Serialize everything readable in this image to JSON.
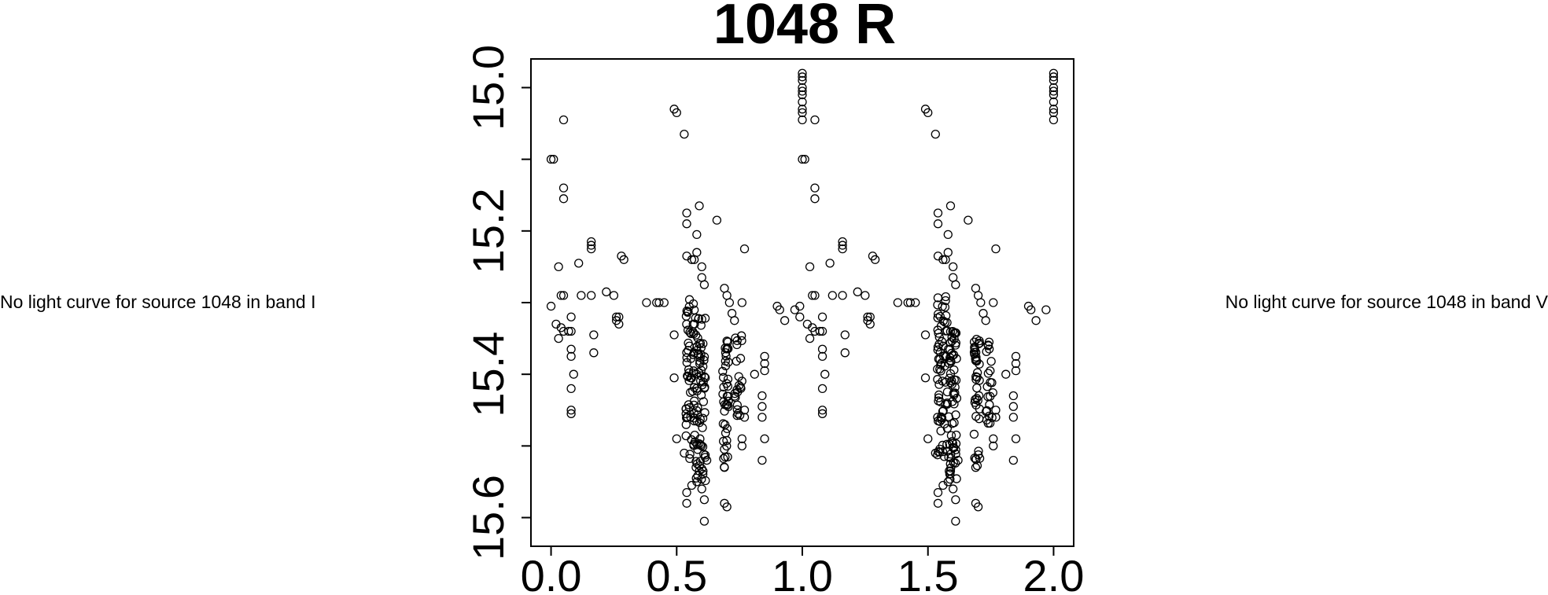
{
  "panels": {
    "left_message": "No light curve for source 1048 in band I",
    "right_message": "No light curve for source 1048 in band V"
  },
  "chart_data": {
    "type": "scatter",
    "title": "1048 R",
    "xlabel": "",
    "ylabel": "",
    "xlim": [
      -0.08,
      2.08
    ],
    "ylim": [
      15.64,
      14.96
    ],
    "y_inverted": true,
    "grid": false,
    "marker": "open-circle",
    "x_ticks": [
      "0.0",
      "0.5",
      "1.0",
      "1.5",
      "2.0"
    ],
    "y_ticks": [
      "15.0",
      "15.2",
      "15.4",
      "15.6"
    ],
    "x_tick_values": [
      0.0,
      0.5,
      1.0,
      1.5,
      2.0
    ],
    "y_tick_values": [
      15.0,
      15.1,
      15.2,
      15.3,
      15.4,
      15.5,
      15.6
    ],
    "y_tick_label_values": [
      15.0,
      15.2,
      15.4,
      15.6
    ],
    "phase_points": [
      [
        0.0,
        15.1
      ],
      [
        0.01,
        15.1
      ],
      [
        0.05,
        15.045
      ],
      [
        0.05,
        15.14
      ],
      [
        0.05,
        15.155
      ],
      [
        0.03,
        15.25
      ],
      [
        0.04,
        15.29
      ],
      [
        0.05,
        15.29
      ],
      [
        0.0,
        15.305
      ],
      [
        0.02,
        15.33
      ],
      [
        0.04,
        15.335
      ],
      [
        0.05,
        15.34
      ],
      [
        0.07,
        15.34
      ],
      [
        0.08,
        15.34
      ],
      [
        0.03,
        15.35
      ],
      [
        0.08,
        15.32
      ],
      [
        0.08,
        15.365
      ],
      [
        0.08,
        15.375
      ],
      [
        0.09,
        15.4
      ],
      [
        0.08,
        15.42
      ],
      [
        0.08,
        15.45
      ],
      [
        0.08,
        15.455
      ],
      [
        0.11,
        15.245
      ],
      [
        0.12,
        15.29
      ],
      [
        0.16,
        15.29
      ],
      [
        0.16,
        15.215
      ],
      [
        0.16,
        15.22
      ],
      [
        0.16,
        15.225
      ],
      [
        0.17,
        15.345
      ],
      [
        0.17,
        15.37
      ],
      [
        0.22,
        15.285
      ],
      [
        0.25,
        15.29
      ],
      [
        0.26,
        15.32
      ],
      [
        0.27,
        15.32
      ],
      [
        0.27,
        15.33
      ],
      [
        0.26,
        15.325
      ],
      [
        0.28,
        15.235
      ],
      [
        0.29,
        15.24
      ],
      [
        0.38,
        15.3
      ],
      [
        0.42,
        15.3
      ],
      [
        0.43,
        15.3
      ],
      [
        0.45,
        15.3
      ],
      [
        0.49,
        15.03
      ],
      [
        0.5,
        15.035
      ],
      [
        0.49,
        15.345
      ],
      [
        0.49,
        15.405
      ],
      [
        0.5,
        15.49
      ],
      [
        0.53,
        15.065
      ],
      [
        0.54,
        15.175
      ],
      [
        0.54,
        15.19
      ],
      [
        0.54,
        15.235
      ],
      [
        0.56,
        15.24
      ],
      [
        0.57,
        15.24
      ],
      [
        0.58,
        15.23
      ],
      [
        0.59,
        15.165
      ],
      [
        0.58,
        15.205
      ],
      [
        0.6,
        15.25
      ],
      [
        0.6,
        15.265
      ],
      [
        0.61,
        15.275
      ],
      [
        0.66,
        15.185
      ],
      [
        0.69,
        15.28
      ],
      [
        0.7,
        15.29
      ],
      [
        0.71,
        15.3
      ],
      [
        0.72,
        15.315
      ],
      [
        0.73,
        15.325
      ],
      [
        0.76,
        15.3
      ],
      [
        0.77,
        15.225
      ],
      [
        0.81,
        15.4
      ],
      [
        0.85,
        15.375
      ],
      [
        0.85,
        15.385
      ],
      [
        0.85,
        15.395
      ],
      [
        0.84,
        15.43
      ],
      [
        0.84,
        15.445
      ],
      [
        0.84,
        15.46
      ],
      [
        0.85,
        15.49
      ],
      [
        0.84,
        15.52
      ],
      [
        0.53,
        15.51
      ],
      [
        0.54,
        15.565
      ],
      [
        0.54,
        15.58
      ],
      [
        0.56,
        15.555
      ],
      [
        0.58,
        15.55
      ],
      [
        0.59,
        15.535
      ],
      [
        0.6,
        15.56
      ],
      [
        0.61,
        15.575
      ],
      [
        0.61,
        15.605
      ],
      [
        0.62,
        15.52
      ],
      [
        0.69,
        15.53
      ],
      [
        0.69,
        15.58
      ],
      [
        0.7,
        15.585
      ],
      [
        0.76,
        15.49
      ],
      [
        0.76,
        15.5
      ],
      [
        0.77,
        15.45
      ],
      [
        0.77,
        15.46
      ],
      [
        0.9,
        15.305
      ],
      [
        0.91,
        15.31
      ],
      [
        0.93,
        15.325
      ],
      [
        0.97,
        15.31
      ],
      [
        0.99,
        15.305
      ],
      [
        0.99,
        15.32
      ],
      [
        1.0,
        14.98
      ],
      [
        1.0,
        14.985
      ],
      [
        1.0,
        14.99
      ],
      [
        1.0,
        15.0
      ],
      [
        1.0,
        15.005
      ],
      [
        1.0,
        15.01
      ],
      [
        1.0,
        15.02
      ],
      [
        1.0,
        15.03
      ],
      [
        1.0,
        15.035
      ],
      [
        1.0,
        15.045
      ],
      [
        1.0,
        15.1
      ],
      [
        1.01,
        15.1
      ],
      [
        1.05,
        15.045
      ],
      [
        1.05,
        15.14
      ],
      [
        1.05,
        15.155
      ],
      [
        1.03,
        15.25
      ],
      [
        1.04,
        15.29
      ],
      [
        1.05,
        15.29
      ],
      [
        1.02,
        15.33
      ],
      [
        1.04,
        15.335
      ],
      [
        1.05,
        15.34
      ],
      [
        1.07,
        15.34
      ],
      [
        1.08,
        15.34
      ],
      [
        1.03,
        15.35
      ],
      [
        1.08,
        15.32
      ],
      [
        1.08,
        15.365
      ],
      [
        1.08,
        15.375
      ],
      [
        1.09,
        15.4
      ],
      [
        1.08,
        15.42
      ],
      [
        1.08,
        15.45
      ],
      [
        1.08,
        15.455
      ],
      [
        1.11,
        15.245
      ],
      [
        1.12,
        15.29
      ],
      [
        1.16,
        15.29
      ],
      [
        1.16,
        15.215
      ],
      [
        1.16,
        15.22
      ],
      [
        1.16,
        15.225
      ],
      [
        1.17,
        15.345
      ],
      [
        1.17,
        15.37
      ],
      [
        1.22,
        15.285
      ],
      [
        1.25,
        15.29
      ],
      [
        1.26,
        15.32
      ],
      [
        1.27,
        15.32
      ],
      [
        1.27,
        15.33
      ],
      [
        1.26,
        15.325
      ],
      [
        1.28,
        15.235
      ],
      [
        1.29,
        15.24
      ],
      [
        1.38,
        15.3
      ],
      [
        1.42,
        15.3
      ],
      [
        1.43,
        15.3
      ],
      [
        1.45,
        15.3
      ],
      [
        1.49,
        15.03
      ],
      [
        1.5,
        15.035
      ],
      [
        1.49,
        15.345
      ],
      [
        1.49,
        15.405
      ],
      [
        1.5,
        15.49
      ],
      [
        1.53,
        15.065
      ],
      [
        1.54,
        15.175
      ],
      [
        1.54,
        15.19
      ],
      [
        1.54,
        15.235
      ],
      [
        1.56,
        15.24
      ],
      [
        1.57,
        15.24
      ],
      [
        1.58,
        15.23
      ],
      [
        1.59,
        15.165
      ],
      [
        1.58,
        15.205
      ],
      [
        1.6,
        15.25
      ],
      [
        1.6,
        15.265
      ],
      [
        1.61,
        15.275
      ],
      [
        1.66,
        15.185
      ],
      [
        1.69,
        15.28
      ],
      [
        1.7,
        15.29
      ],
      [
        1.71,
        15.3
      ],
      [
        1.72,
        15.315
      ],
      [
        1.73,
        15.325
      ],
      [
        1.76,
        15.3
      ],
      [
        1.77,
        15.225
      ],
      [
        1.81,
        15.4
      ],
      [
        1.85,
        15.375
      ],
      [
        1.85,
        15.385
      ],
      [
        1.85,
        15.395
      ],
      [
        1.84,
        15.43
      ],
      [
        1.84,
        15.445
      ],
      [
        1.84,
        15.46
      ],
      [
        1.85,
        15.49
      ],
      [
        1.84,
        15.52
      ],
      [
        1.53,
        15.51
      ],
      [
        1.54,
        15.565
      ],
      [
        1.54,
        15.58
      ],
      [
        1.56,
        15.555
      ],
      [
        1.58,
        15.55
      ],
      [
        1.59,
        15.535
      ],
      [
        1.6,
        15.56
      ],
      [
        1.61,
        15.575
      ],
      [
        1.61,
        15.605
      ],
      [
        1.62,
        15.52
      ],
      [
        1.69,
        15.53
      ],
      [
        1.69,
        15.58
      ],
      [
        1.7,
        15.585
      ],
      [
        1.76,
        15.49
      ],
      [
        1.76,
        15.5
      ],
      [
        1.77,
        15.45
      ],
      [
        1.77,
        15.46
      ],
      [
        1.9,
        15.305
      ],
      [
        1.91,
        15.31
      ],
      [
        1.93,
        15.325
      ],
      [
        1.97,
        15.31
      ],
      [
        2.0,
        14.98
      ],
      [
        2.0,
        14.985
      ],
      [
        2.0,
        14.99
      ],
      [
        2.0,
        15.0
      ],
      [
        2.0,
        15.005
      ],
      [
        2.0,
        15.01
      ],
      [
        2.0,
        15.02
      ],
      [
        2.0,
        15.03
      ],
      [
        2.0,
        15.035
      ],
      [
        2.0,
        15.045
      ]
    ],
    "dense_clusters": [
      {
        "x_center": 0.555,
        "x_spread": 0.018,
        "y_min": 15.29,
        "y_max": 15.52,
        "count": 60
      },
      {
        "x_center": 0.595,
        "x_spread": 0.02,
        "y_min": 15.32,
        "y_max": 15.55,
        "count": 70
      },
      {
        "x_center": 0.695,
        "x_spread": 0.012,
        "y_min": 15.35,
        "y_max": 15.53,
        "count": 40
      },
      {
        "x_center": 0.745,
        "x_spread": 0.015,
        "y_min": 15.34,
        "y_max": 15.47,
        "count": 22
      },
      {
        "x_center": 1.555,
        "x_spread": 0.018,
        "y_min": 15.29,
        "y_max": 15.52,
        "count": 60
      },
      {
        "x_center": 1.595,
        "x_spread": 0.02,
        "y_min": 15.32,
        "y_max": 15.55,
        "count": 70
      },
      {
        "x_center": 1.695,
        "x_spread": 0.012,
        "y_min": 15.35,
        "y_max": 15.53,
        "count": 40
      },
      {
        "x_center": 1.745,
        "x_spread": 0.015,
        "y_min": 15.34,
        "y_max": 15.47,
        "count": 22
      }
    ],
    "color": "#000000"
  }
}
